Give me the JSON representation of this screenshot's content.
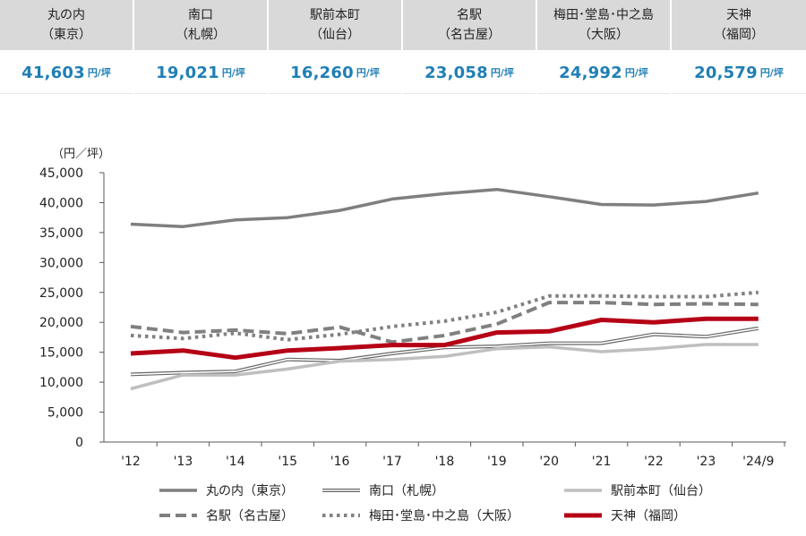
{
  "header": {
    "columns": [
      {
        "name": "丸の内",
        "sub": "（東京）",
        "value": "41,603",
        "unit": "円/坪"
      },
      {
        "name": "南口",
        "sub": "（札幌）",
        "value": "19,021",
        "unit": "円/坪"
      },
      {
        "name": "駅前本町",
        "sub": "（仙台）",
        "value": "16,260",
        "unit": "円/坪"
      },
      {
        "name": "名駅",
        "sub": "（名古屋）",
        "value": "23,058",
        "unit": "円/坪"
      },
      {
        "name": "梅田･堂島･中之島",
        "sub": "（大阪）",
        "value": "24,992",
        "unit": "円/坪"
      },
      {
        "name": "天神",
        "sub": "（福岡）",
        "value": "20,579",
        "unit": "円/坪"
      }
    ]
  },
  "chart_data": {
    "type": "line",
    "ylabel": "（円／坪）",
    "ylim": [
      0,
      45000
    ],
    "yticks": [
      0,
      5000,
      10000,
      15000,
      20000,
      25000,
      30000,
      35000,
      40000,
      45000
    ],
    "ytick_labels": [
      "0",
      "5,000",
      "10,000",
      "15,000",
      "20,000",
      "25,000",
      "30,000",
      "35,000",
      "40,000",
      "45,000"
    ],
    "categories": [
      "'12",
      "'13",
      "'14",
      "'15",
      "'16",
      "'17",
      "'18",
      "'19",
      "'20",
      "'21",
      "'22",
      "'23",
      "'24/9"
    ],
    "legend_position": "bottom",
    "grid": false,
    "series": [
      {
        "name": "丸の内（東京）",
        "color": "#7f7f7f",
        "style": "solid",
        "values": [
          36400,
          36000,
          37100,
          37500,
          38700,
          40600,
          41500,
          42200,
          41000,
          39700,
          39600,
          40200,
          41600
        ]
      },
      {
        "name": "南口（札幌）",
        "color": "#666666",
        "style": "double",
        "values": [
          11300,
          11600,
          11800,
          13800,
          13600,
          14800,
          15800,
          16000,
          16500,
          16500,
          18000,
          17600,
          19000
        ]
      },
      {
        "name": "駅前本町（仙台）",
        "color": "#bfbfbf",
        "style": "solid",
        "values": [
          8900,
          11200,
          11200,
          12200,
          13500,
          13800,
          14300,
          15600,
          15900,
          15100,
          15600,
          16300,
          16300
        ]
      },
      {
        "name": "名駅（名古屋）",
        "color": "#808080",
        "style": "dashed",
        "values": [
          19300,
          18300,
          18700,
          18100,
          19200,
          16700,
          17800,
          19700,
          23300,
          23300,
          23000,
          23100,
          23000
        ]
      },
      {
        "name": "梅田･堂島･中之島（大阪）",
        "color": "#808080",
        "style": "dotted",
        "values": [
          17800,
          17300,
          18200,
          17100,
          18000,
          19300,
          20200,
          21700,
          24400,
          24400,
          24300,
          24300,
          25000
        ]
      },
      {
        "name": "天神（福岡）",
        "color": "#b50015",
        "style": "solid",
        "values": [
          14800,
          15300,
          14100,
          15300,
          15700,
          16200,
          16200,
          18300,
          18500,
          20400,
          20000,
          20600,
          20600
        ]
      }
    ]
  }
}
